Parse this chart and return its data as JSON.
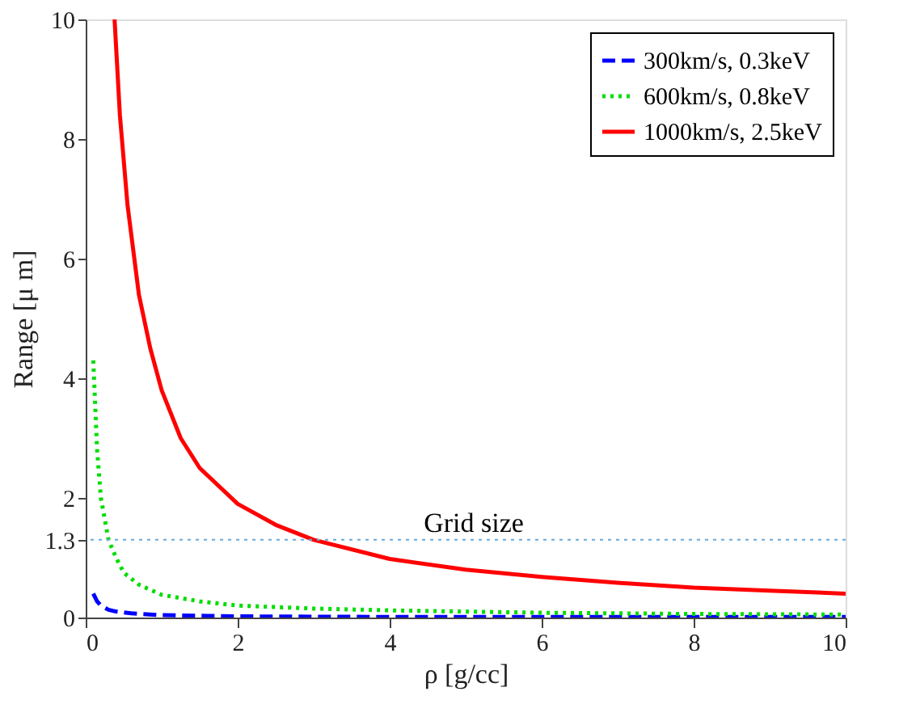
{
  "chart_data": {
    "type": "line",
    "xlabel": "ρ [g/cc]",
    "ylabel": "Range [μ m]",
    "xlim": [
      0,
      10
    ],
    "xticks": [
      0,
      2,
      4,
      6,
      8,
      10
    ],
    "ylim": [
      0,
      10
    ],
    "yticks": [
      0,
      1.3,
      2,
      4,
      6,
      8,
      10
    ],
    "grid": false,
    "legend": "top right",
    "marker": "none",
    "series": [
      {
        "name": "300km/s, 0.3keV",
        "color": "#0000ff",
        "line_style": "dashed",
        "x": [
          0.1,
          0.15,
          0.2,
          0.3,
          0.4,
          0.6,
          1,
          2,
          4,
          6,
          8,
          10
        ],
        "values": [
          0.4,
          0.27,
          0.2,
          0.13,
          0.1,
          0.07,
          0.04,
          0.02,
          0.01,
          0.01,
          0.01,
          0.01
        ]
      },
      {
        "name": "600km/s, 0.8keV",
        "color": "#00dd00",
        "line_style": "dotted",
        "x": [
          0.1,
          0.15,
          0.2,
          0.3,
          0.4,
          0.5,
          0.7,
          1,
          1.5,
          2,
          3,
          4,
          6,
          8,
          10
        ],
        "values": [
          4.3,
          2.8,
          2.0,
          1.3,
          1.0,
          0.75,
          0.55,
          0.38,
          0.27,
          0.2,
          0.15,
          0.12,
          0.08,
          0.06,
          0.05
        ]
      },
      {
        "name": "1000km/s, 2.5keV",
        "color": "#ff0000",
        "line_style": "solid",
        "x": [
          0.38,
          0.45,
          0.55,
          0.7,
          0.85,
          1,
          1.25,
          1.5,
          2,
          2.5,
          3,
          4,
          5,
          6,
          7,
          8,
          9,
          10
        ],
        "values": [
          10,
          8.4,
          6.9,
          5.4,
          4.5,
          3.8,
          3.0,
          2.5,
          1.9,
          1.55,
          1.3,
          0.98,
          0.8,
          0.68,
          0.58,
          0.5,
          0.45,
          0.4
        ]
      }
    ],
    "ref_lines": [
      {
        "axis": "y",
        "value": 1.3,
        "label": "Grid size",
        "color": "#66aadd",
        "line_style": "dotted"
      }
    ]
  }
}
